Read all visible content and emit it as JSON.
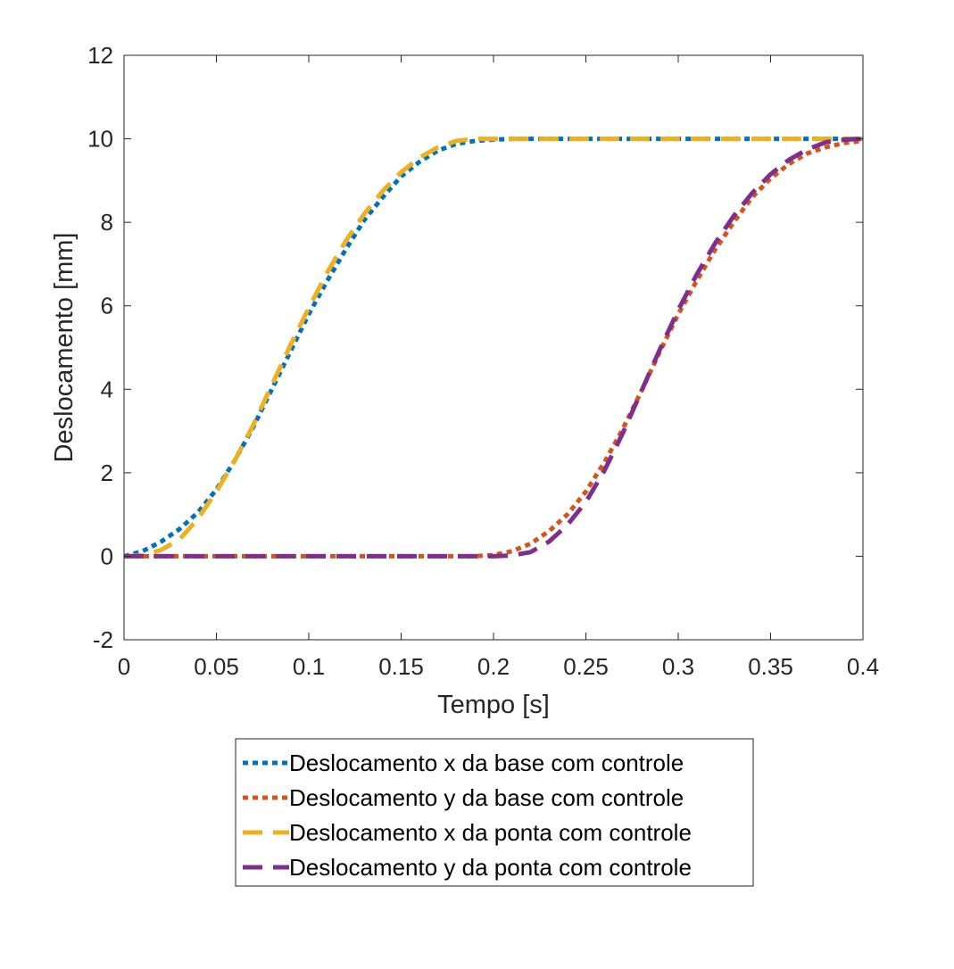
{
  "chart_data": {
    "type": "line",
    "xlabel": "Tempo [s]",
    "ylabel": "Deslocamento [mm]",
    "xlim": [
      0,
      0.4
    ],
    "ylim": [
      -2,
      12
    ],
    "xticks": [
      0,
      0.05,
      0.1,
      0.15,
      0.2,
      0.25,
      0.3,
      0.35,
      0.4
    ],
    "xtick_labels": [
      "0",
      "0.05",
      "0.1",
      "0.15",
      "0.2",
      "0.25",
      "0.3",
      "0.35",
      "0.4"
    ],
    "yticks": [
      -2,
      0,
      2,
      4,
      6,
      8,
      10,
      12
    ],
    "ytick_labels": [
      "-2",
      "0",
      "2",
      "4",
      "6",
      "8",
      "10",
      "12"
    ],
    "grid": false,
    "legend_position": "below plot",
    "series": [
      {
        "name": "Deslocamento x da base com controle",
        "color": "#0072BD",
        "style": "dotted",
        "x": [
          0,
          0.01,
          0.02,
          0.03,
          0.04,
          0.05,
          0.06,
          0.07,
          0.08,
          0.09,
          0.1,
          0.11,
          0.12,
          0.13,
          0.14,
          0.15,
          0.16,
          0.17,
          0.18,
          0.19,
          0.2,
          0.21,
          0.22,
          0.4
        ],
        "y": [
          0,
          0.12,
          0.35,
          0.65,
          1.05,
          1.6,
          2.3,
          3.1,
          4.0,
          4.9,
          5.8,
          6.6,
          7.35,
          8.05,
          8.6,
          9.1,
          9.45,
          9.72,
          9.88,
          9.95,
          9.98,
          10.0,
          10.0,
          10.0
        ]
      },
      {
        "name": "Deslocamento y da base com controle",
        "color": "#D95319",
        "style": "dotted",
        "x": [
          0,
          0.19,
          0.2,
          0.21,
          0.22,
          0.23,
          0.24,
          0.25,
          0.26,
          0.27,
          0.28,
          0.29,
          0.3,
          0.31,
          0.32,
          0.33,
          0.34,
          0.35,
          0.36,
          0.37,
          0.38,
          0.39,
          0.4
        ],
        "y": [
          0,
          0,
          0.03,
          0.12,
          0.3,
          0.6,
          1.0,
          1.55,
          2.25,
          3.05,
          3.95,
          4.9,
          5.8,
          6.6,
          7.35,
          8.0,
          8.6,
          9.05,
          9.4,
          9.65,
          9.8,
          9.9,
          9.95
        ]
      },
      {
        "name": "Deslocamento x da ponta com controle",
        "color": "#EDB120",
        "style": "dashed",
        "x": [
          0,
          0.01,
          0.02,
          0.03,
          0.04,
          0.05,
          0.06,
          0.07,
          0.08,
          0.09,
          0.1,
          0.11,
          0.12,
          0.13,
          0.14,
          0.15,
          0.16,
          0.17,
          0.18,
          0.19,
          0.2,
          0.21,
          0.4
        ],
        "y": [
          0,
          0.02,
          0.15,
          0.4,
          0.9,
          1.55,
          2.3,
          3.15,
          4.1,
          5.05,
          5.95,
          6.8,
          7.55,
          8.2,
          8.75,
          9.2,
          9.55,
          9.8,
          9.95,
          10.0,
          10.0,
          10.0,
          10.0
        ]
      },
      {
        "name": "Deslocamento y da ponta com controle",
        "color": "#7E2F8E",
        "style": "dashed",
        "x": [
          0,
          0.2,
          0.21,
          0.22,
          0.23,
          0.24,
          0.25,
          0.26,
          0.27,
          0.28,
          0.29,
          0.3,
          0.31,
          0.32,
          0.33,
          0.34,
          0.35,
          0.36,
          0.37,
          0.38,
          0.39,
          0.4
        ],
        "y": [
          0,
          0,
          0.02,
          0.1,
          0.35,
          0.75,
          1.3,
          2.05,
          2.95,
          3.95,
          4.95,
          5.9,
          6.75,
          7.5,
          8.15,
          8.7,
          9.15,
          9.5,
          9.75,
          9.92,
          9.98,
          10.0
        ]
      }
    ]
  }
}
